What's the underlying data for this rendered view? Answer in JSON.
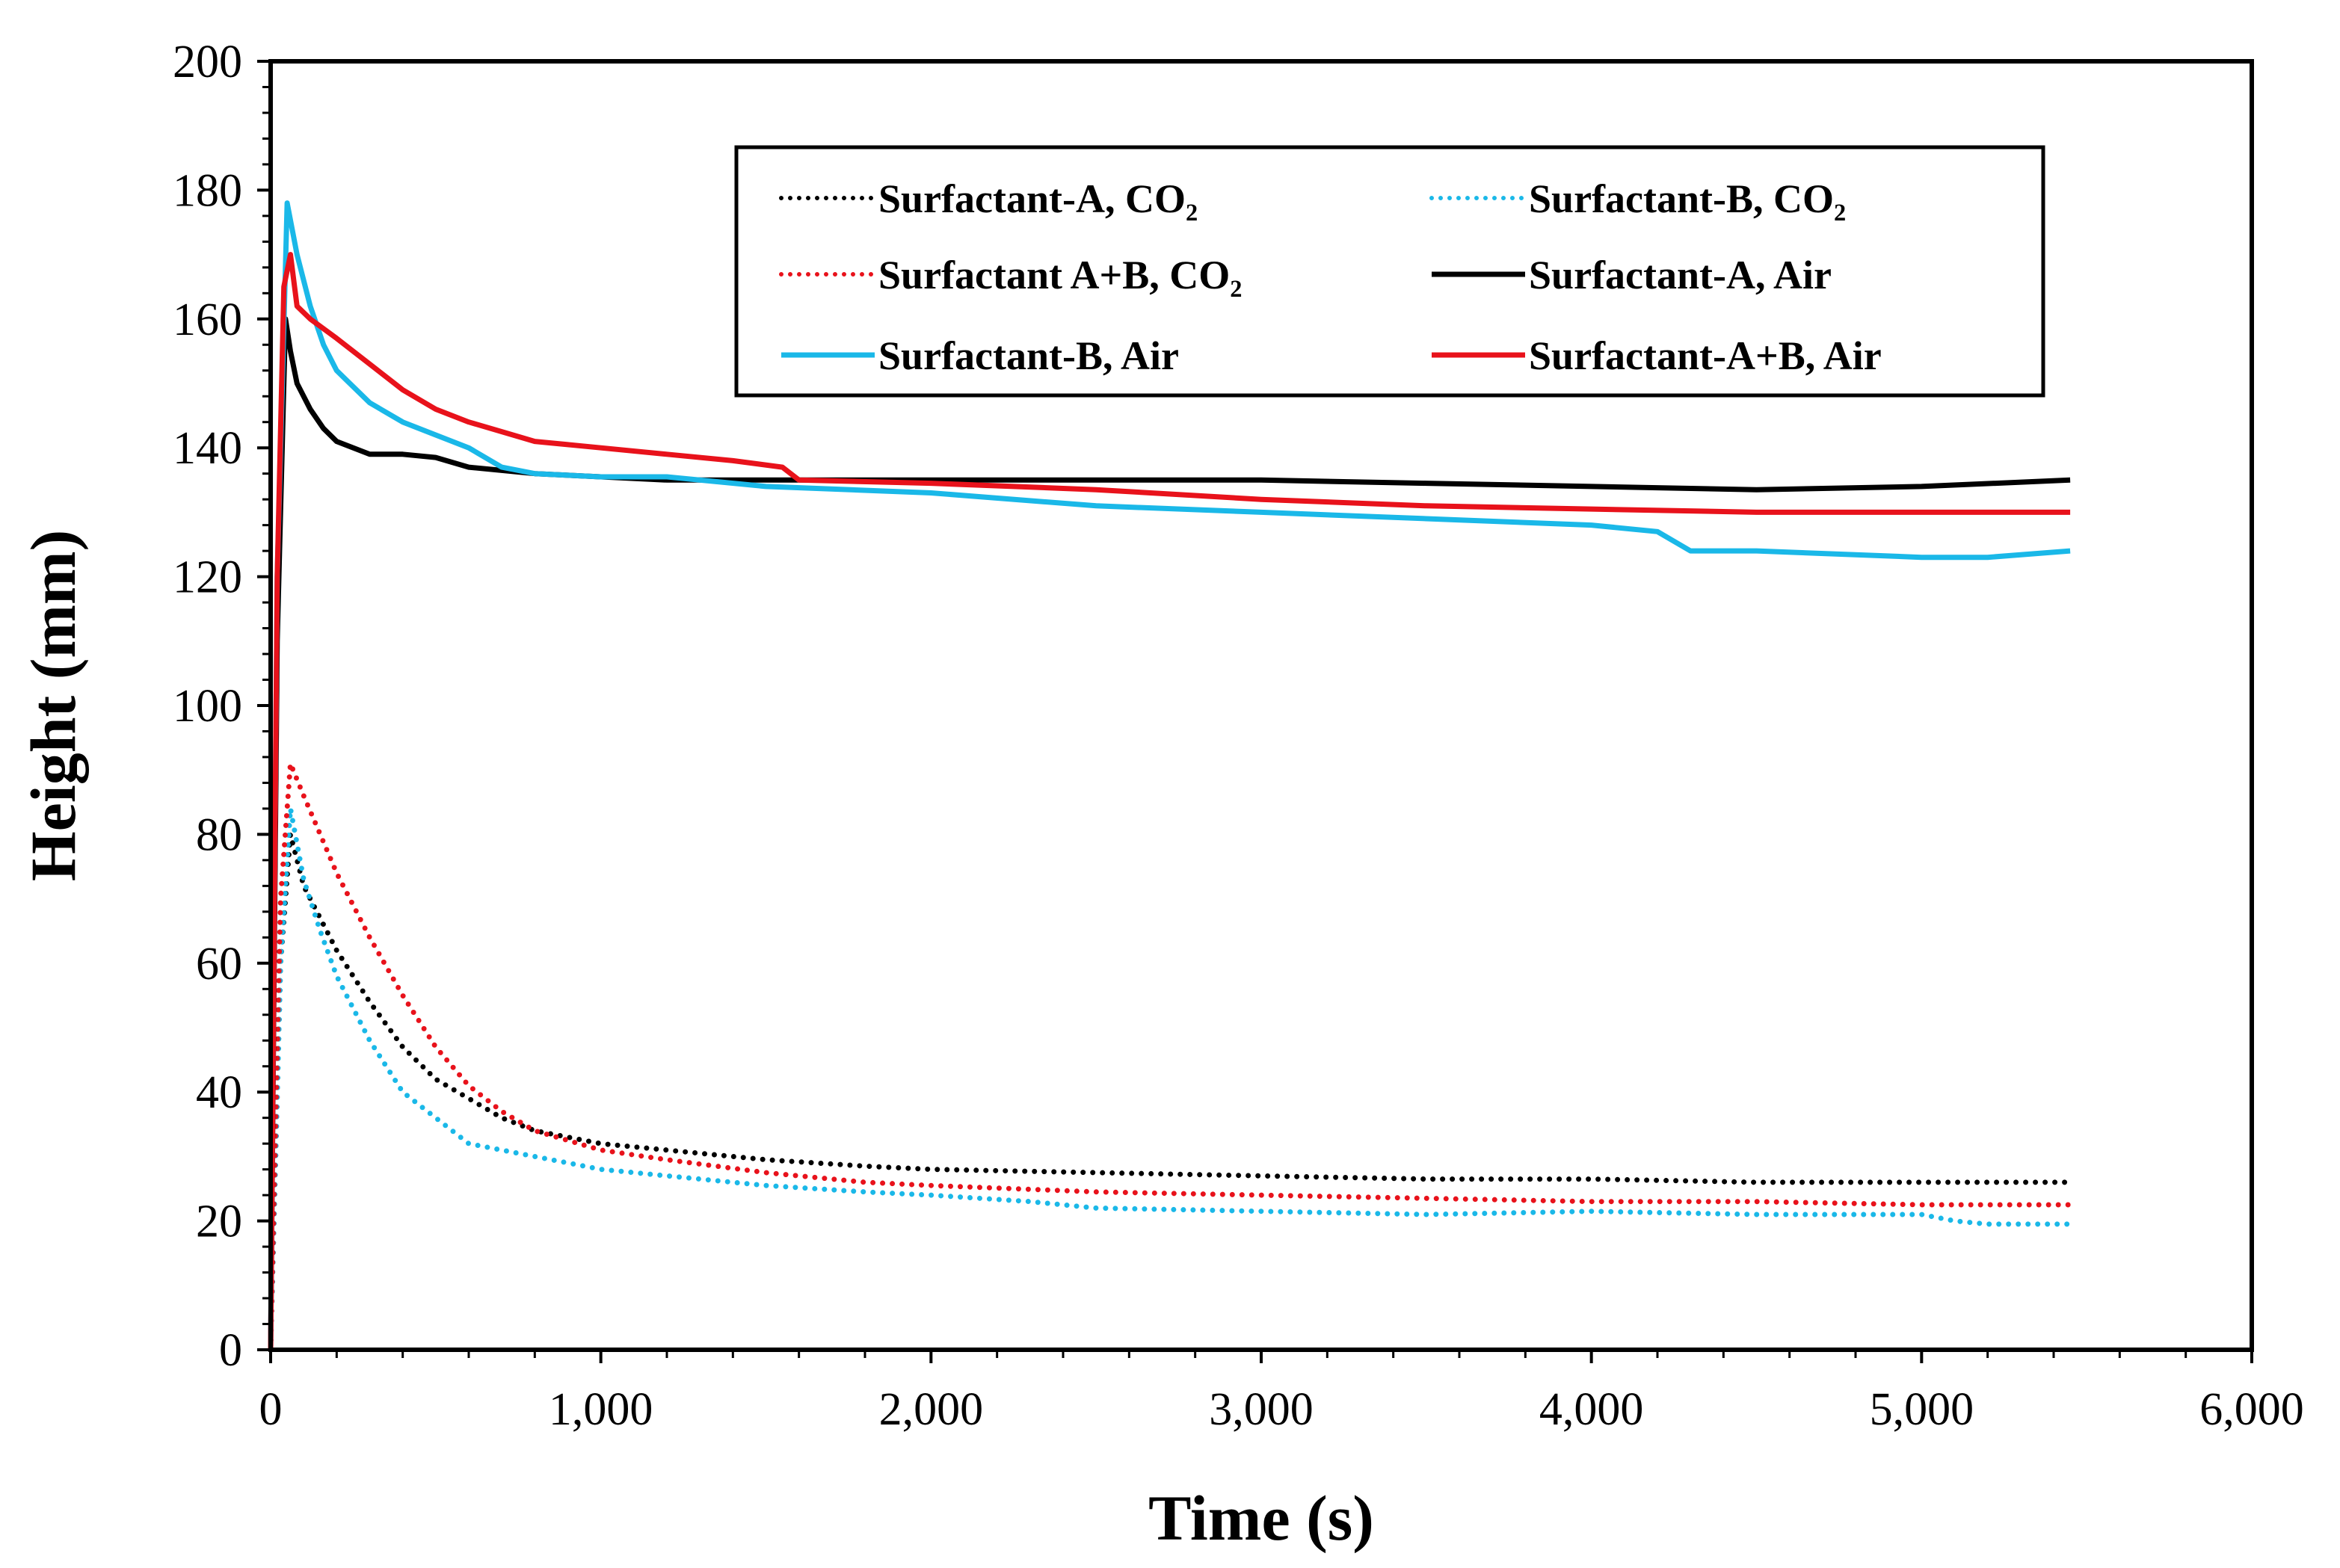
{
  "chart_data": {
    "type": "line",
    "title": "",
    "xlabel": "Time (s)",
    "ylabel": "Height (mm)",
    "xlim": [
      0,
      6000
    ],
    "ylim": [
      0,
      200
    ],
    "x_ticks": [
      0,
      1000,
      2000,
      3000,
      4000,
      5000,
      6000
    ],
    "x_tick_labels": [
      "0",
      "1,000",
      "2,000",
      "3,000",
      "4,000",
      "5,000",
      "6,000"
    ],
    "y_ticks": [
      0,
      20,
      40,
      60,
      80,
      100,
      120,
      140,
      160,
      180,
      200
    ],
    "y_tick_labels": [
      "0",
      "20",
      "40",
      "60",
      "80",
      "100",
      "120",
      "140",
      "160",
      "180",
      "200"
    ],
    "grid": false,
    "legend_position": "top-right",
    "series": [
      {
        "name": "Surfactant-A, CO₂",
        "color": "#000000",
        "style": "dotted",
        "x": [
          0,
          30,
          60,
          100,
          150,
          200,
          300,
          400,
          500,
          600,
          700,
          800,
          1000,
          1200,
          1500,
          1800,
          2000,
          2500,
          3000,
          3500,
          4000,
          4500,
          5000,
          5450
        ],
        "y": [
          0,
          60,
          80,
          72,
          67,
          62,
          54,
          47,
          42,
          39,
          36,
          34,
          32,
          31,
          29.5,
          28.5,
          28,
          27.5,
          27,
          26.5,
          26.5,
          26,
          26,
          26
        ]
      },
      {
        "name": "Surfactant-B, CO₂",
        "color": "#1ab8e8",
        "style": "dotted",
        "x": [
          0,
          30,
          60,
          100,
          150,
          200,
          300,
          400,
          500,
          600,
          700,
          800,
          1000,
          1200,
          1500,
          1800,
          2000,
          2300,
          2500,
          3000,
          3500,
          4000,
          4500,
          5000,
          5100,
          5200,
          5450
        ],
        "y": [
          0,
          60,
          84,
          73,
          65,
          58,
          48,
          40,
          36,
          32,
          31,
          30,
          28,
          27,
          25.5,
          24.5,
          24,
          23,
          22,
          21.5,
          21,
          21.5,
          21,
          21,
          20,
          19.5,
          19.5
        ]
      },
      {
        "name": "Surfactant A+B, CO₂",
        "color": "#e8121b",
        "style": "dotted",
        "x": [
          0,
          30,
          60,
          100,
          150,
          200,
          300,
          400,
          500,
          600,
          700,
          800,
          1000,
          1200,
          1500,
          1800,
          2000,
          2500,
          3000,
          3500,
          4000,
          4500,
          5000,
          5450
        ],
        "y": [
          0,
          70,
          91,
          86,
          80,
          74,
          64,
          55,
          47,
          41,
          37,
          34,
          31,
          29.5,
          27.5,
          26,
          25.5,
          24.5,
          24,
          23.5,
          23,
          23,
          22.5,
          22.5
        ]
      },
      {
        "name": "Surfactant-A, Air",
        "color": "#000000",
        "style": "solid",
        "x": [
          0,
          20,
          45,
          60,
          80,
          120,
          160,
          200,
          300,
          400,
          500,
          600,
          700,
          800,
          1000,
          1200,
          1500,
          2000,
          2500,
          3000,
          3500,
          4000,
          4500,
          5000,
          5450
        ],
        "y": [
          0,
          110,
          160,
          155,
          150,
          146,
          143,
          141,
          139,
          139,
          138.5,
          137,
          136.5,
          136,
          135.5,
          135,
          135,
          135,
          135,
          135,
          134.5,
          134,
          133.5,
          134,
          135
        ]
      },
      {
        "name": "Surfactant-B, Air",
        "color": "#1ab8e8",
        "style": "solid",
        "x": [
          0,
          20,
          50,
          80,
          120,
          160,
          200,
          300,
          400,
          500,
          600,
          700,
          800,
          1000,
          1200,
          1500,
          2000,
          2500,
          3000,
          3500,
          4000,
          4200,
          4300,
          4500,
          5000,
          5200,
          5450
        ],
        "y": [
          0,
          120,
          178,
          170,
          162,
          156,
          152,
          147,
          144,
          142,
          140,
          137,
          136,
          135.5,
          135.5,
          134,
          133,
          131,
          130,
          129,
          128,
          127,
          124,
          124,
          123,
          123,
          124
        ]
      },
      {
        "name": "Surfactant-A+B, Air",
        "color": "#e8121b",
        "style": "solid",
        "x": [
          0,
          20,
          40,
          60,
          80,
          120,
          200,
          300,
          400,
          500,
          600,
          700,
          800,
          900,
          1000,
          1200,
          1400,
          1550,
          1600,
          2000,
          2500,
          3000,
          3500,
          4000,
          4500,
          5000,
          5450
        ],
        "y": [
          0,
          120,
          165,
          170,
          162,
          160,
          157,
          153,
          149,
          146,
          144,
          142.5,
          141,
          140.5,
          140,
          139,
          138,
          137,
          135,
          134.5,
          133.5,
          132,
          131,
          130.5,
          130,
          130,
          130
        ]
      }
    ]
  }
}
